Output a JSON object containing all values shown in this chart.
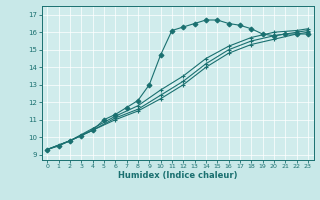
{
  "background_color": "#c8e8e8",
  "plot_bg_color": "#d0ecec",
  "line_color": "#1a7070",
  "grid_color": "#ffffff",
  "xlabel": "Humidex (Indice chaleur)",
  "ylabel_ticks": [
    9,
    10,
    11,
    12,
    13,
    14,
    15,
    16,
    17
  ],
  "xlabel_ticks": [
    0,
    1,
    2,
    3,
    4,
    5,
    6,
    7,
    8,
    9,
    10,
    11,
    12,
    13,
    14,
    15,
    16,
    17,
    18,
    19,
    20,
    21,
    22,
    23
  ],
  "ylim": [
    8.7,
    17.5
  ],
  "xlim": [
    -0.5,
    23.5
  ],
  "lines": [
    {
      "x": [
        0,
        1,
        2,
        3,
        4,
        5,
        6,
        7,
        8,
        9,
        10,
        11,
        12,
        13,
        14,
        15,
        16,
        17,
        18,
        19,
        20,
        21,
        22,
        23
      ],
      "y": [
        9.3,
        9.5,
        9.8,
        10.1,
        10.4,
        11.0,
        11.3,
        11.7,
        12.1,
        13.0,
        14.7,
        16.1,
        16.3,
        16.5,
        16.7,
        16.7,
        16.5,
        16.4,
        16.2,
        15.9,
        15.8,
        15.9,
        15.9,
        15.9
      ]
    },
    {
      "x": [
        0,
        2,
        4,
        6,
        8,
        10,
        12,
        14,
        16,
        18,
        20,
        22,
        23
      ],
      "y": [
        9.3,
        9.8,
        10.4,
        11.0,
        11.5,
        12.2,
        13.0,
        14.0,
        14.8,
        15.3,
        15.6,
        15.9,
        16.0
      ]
    },
    {
      "x": [
        0,
        2,
        4,
        6,
        8,
        10,
        12,
        14,
        16,
        18,
        20,
        22,
        23
      ],
      "y": [
        9.3,
        9.8,
        10.4,
        11.1,
        11.6,
        12.4,
        13.2,
        14.2,
        15.0,
        15.5,
        15.8,
        16.0,
        16.1
      ]
    },
    {
      "x": [
        0,
        2,
        4,
        6,
        8,
        10,
        12,
        14,
        16,
        18,
        20,
        22,
        23
      ],
      "y": [
        9.3,
        9.8,
        10.5,
        11.2,
        11.8,
        12.7,
        13.5,
        14.5,
        15.2,
        15.7,
        16.0,
        16.1,
        16.2
      ]
    }
  ]
}
